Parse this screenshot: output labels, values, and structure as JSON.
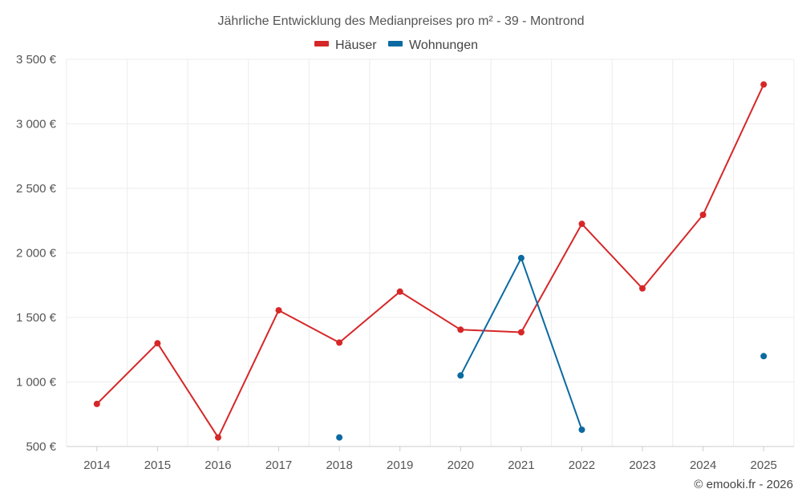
{
  "chart_data": {
    "type": "line",
    "title": "Jährliche Entwicklung des Medianpreises pro m² - 39 - Montrond",
    "xlabel": "",
    "ylabel": "",
    "categories": [
      "2014",
      "2015",
      "2016",
      "2017",
      "2018",
      "2019",
      "2020",
      "2021",
      "2022",
      "2023",
      "2024",
      "2025"
    ],
    "ylim": [
      500,
      3500
    ],
    "yticks": [
      500,
      1000,
      1500,
      2000,
      2500,
      3000,
      3500
    ],
    "ytick_labels": [
      "500 €",
      "1 000 €",
      "1 500 €",
      "2 000 €",
      "2 500 €",
      "3 000 €",
      "3 500 €"
    ],
    "grid": true,
    "legend_position": "top-center",
    "series": [
      {
        "name": "Häuser",
        "color": "#d62728",
        "values": [
          830,
          1300,
          570,
          1555,
          1305,
          1700,
          1405,
          1385,
          2225,
          1725,
          2295,
          3305
        ]
      },
      {
        "name": "Wohnungen",
        "color": "#0a6aa1",
        "values": [
          null,
          null,
          null,
          null,
          570,
          null,
          1050,
          1960,
          630,
          null,
          null,
          1200
        ]
      }
    ],
    "credit": "© emooki.fr - 2026"
  }
}
